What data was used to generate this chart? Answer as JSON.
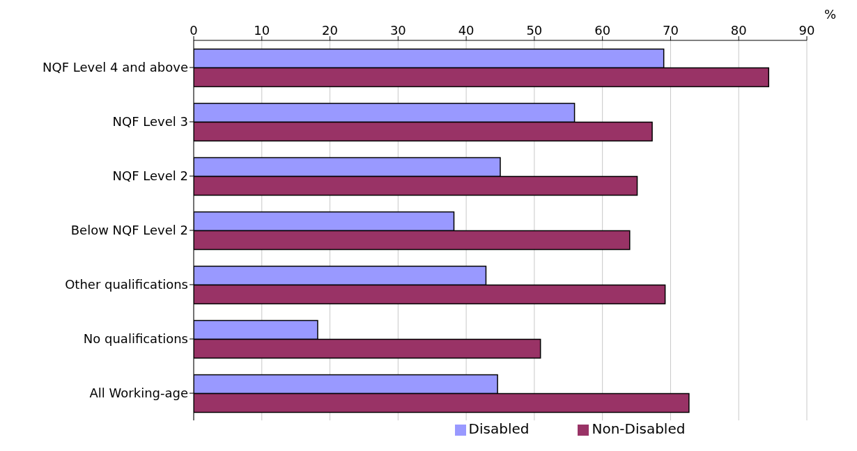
{
  "chart_data": {
    "type": "bar",
    "orientation": "horizontal",
    "xlabel": "%",
    "categories": [
      "NQF Level 4 and above",
      "NQF Level 3",
      "NQF Level 2",
      "Below NQF Level 2",
      "Other qualifications",
      "No qualifications",
      "All Working-age"
    ],
    "series": [
      {
        "name": "Disabled",
        "color": "#9999ff",
        "values": [
          69.0,
          55.9,
          45.0,
          38.2,
          42.9,
          18.2,
          44.6
        ]
      },
      {
        "name": "Non-Disabled",
        "color": "#993366",
        "values": [
          84.4,
          67.3,
          65.1,
          64.0,
          69.2,
          50.9,
          72.7
        ]
      }
    ],
    "xlim": [
      0,
      90
    ],
    "xticks": [
      0,
      10,
      20,
      30,
      40,
      50,
      60,
      70,
      80,
      90
    ],
    "grid": "x",
    "legend": "bottom"
  }
}
